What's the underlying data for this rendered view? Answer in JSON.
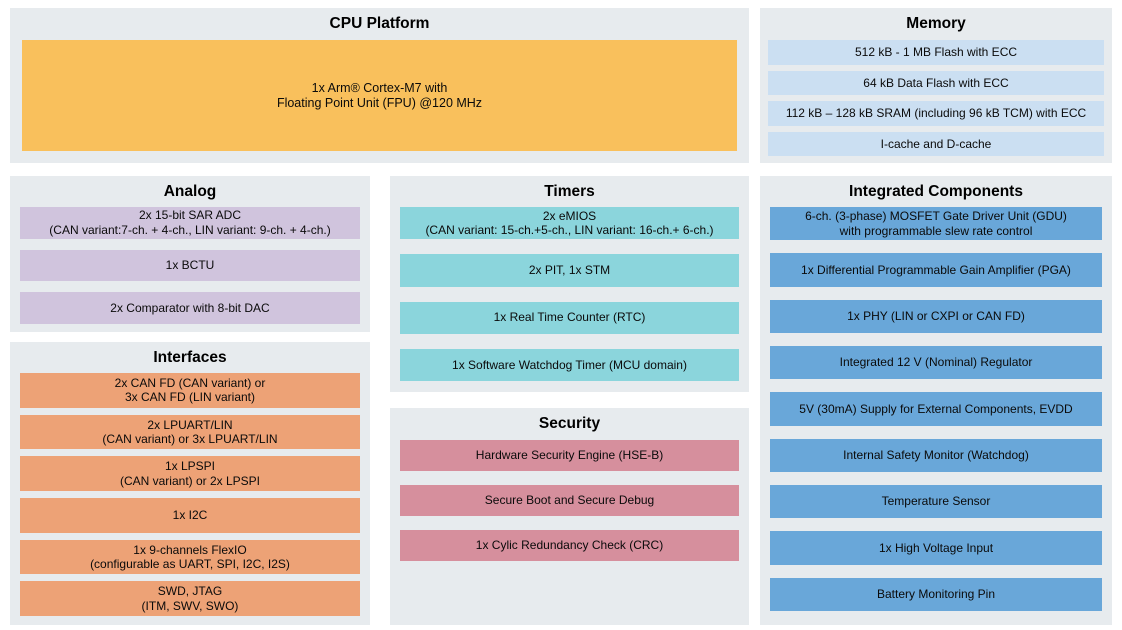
{
  "page": {
    "background": "#ffffff",
    "section_background": "#e7ebee",
    "title_color": "#000000",
    "text_color": "#0a0a0a"
  },
  "sections": {
    "cpu": {
      "title": "CPU Platform",
      "row_color": "#F9C05C",
      "rows": [
        {
          "lines": [
            "1x Arm® Cortex-M7 with",
            "Floating Point Unit (FPU) @120 MHz"
          ]
        }
      ]
    },
    "memory": {
      "title": "Memory",
      "row_color": "#CBDFF2",
      "rows": [
        {
          "lines": [
            "512 kB - 1 MB Flash with ECC"
          ]
        },
        {
          "lines": [
            "64 kB Data Flash with ECC"
          ]
        },
        {
          "lines": [
            "112 kB – 128 kB SRAM (including 96 kB TCM) with ECC"
          ]
        },
        {
          "lines": [
            "I-cache and D-cache"
          ]
        }
      ]
    },
    "analog": {
      "title": "Analog",
      "row_color": "#D0C4DD",
      "rows": [
        {
          "lines": [
            "2x 15-bit SAR ADC",
            "(CAN variant:7-ch. + 4-ch., LIN variant: 9-ch. + 4-ch.)"
          ]
        },
        {
          "lines": [
            "1x BCTU"
          ]
        },
        {
          "lines": [
            "2x Comparator with 8-bit DAC"
          ]
        }
      ]
    },
    "interfaces": {
      "title": "Interfaces",
      "row_color": "#EDA276",
      "rows": [
        {
          "lines": [
            "2x CAN FD (CAN variant) or",
            "3x CAN FD (LIN variant)"
          ]
        },
        {
          "lines": [
            "2x LPUART/LIN",
            "(CAN variant) or 3x LPUART/LIN"
          ]
        },
        {
          "lines": [
            "1x LPSPI",
            "(CAN variant) or 2x LPSPI"
          ]
        },
        {
          "lines": [
            "1x I2C"
          ]
        },
        {
          "lines": [
            "1x 9-channels FlexIO",
            "(configurable as UART, SPI, I2C, I2S)"
          ]
        },
        {
          "lines": [
            "SWD, JTAG",
            "(ITM, SWV, SWO)"
          ]
        }
      ]
    },
    "timers": {
      "title": "Timers",
      "row_color": "#8BD5DC",
      "rows": [
        {
          "lines": [
            "2x eMIOS",
            "(CAN variant: 15-ch.+5-ch., LIN variant: 16-ch.+ 6-ch.)"
          ]
        },
        {
          "lines": [
            "2x PIT, 1x STM"
          ]
        },
        {
          "lines": [
            "1x Real Time Counter (RTC)"
          ]
        },
        {
          "lines": [
            "1x Software Watchdog Timer (MCU domain)"
          ]
        }
      ]
    },
    "security": {
      "title": "Security",
      "row_color": "#D68F9D",
      "rows": [
        {
          "lines": [
            "Hardware Security Engine (HSE-B)"
          ]
        },
        {
          "lines": [
            "Secure Boot and Secure Debug"
          ]
        },
        {
          "lines": [
            "1x Cylic Redundancy Check (CRC)"
          ]
        }
      ]
    },
    "integrated": {
      "title": "Integrated Components",
      "row_color": "#69A7D9",
      "rows": [
        {
          "lines": [
            "6-ch. (3-phase) MOSFET Gate Driver Unit (GDU)",
            "with programmable slew rate control"
          ]
        },
        {
          "lines": [
            "1x Differential Programmable Gain Amplifier (PGA)"
          ]
        },
        {
          "lines": [
            "1x PHY (LIN or CXPI or CAN FD)"
          ]
        },
        {
          "lines": [
            "Integrated 12 V (Nominal) Regulator"
          ]
        },
        {
          "lines": [
            "5V (30mA) Supply for External Components, EVDD"
          ]
        },
        {
          "lines": [
            "Internal Safety Monitor (Watchdog)"
          ]
        },
        {
          "lines": [
            "Temperature Sensor"
          ]
        },
        {
          "lines": [
            "1x High Voltage Input"
          ]
        },
        {
          "lines": [
            "Battery Monitoring Pin"
          ]
        }
      ]
    }
  }
}
